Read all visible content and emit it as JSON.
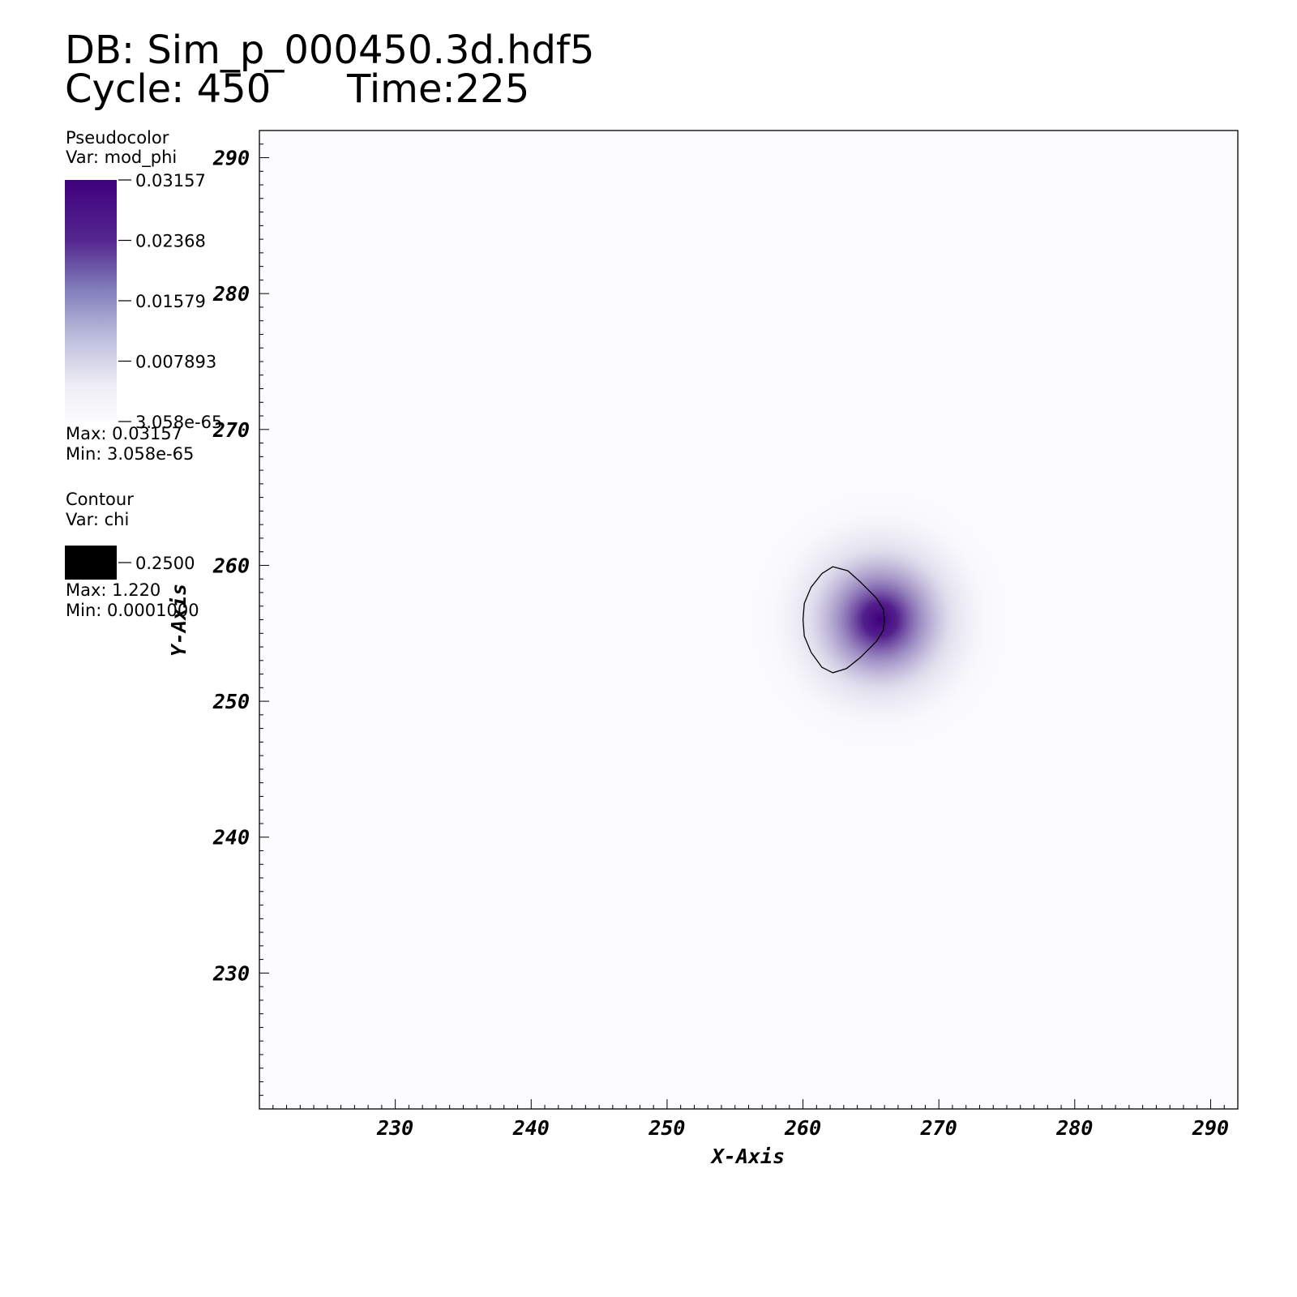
{
  "header": {
    "db": "DB: Sim_p_000450.3d.hdf5",
    "cycle": "Cycle: 450",
    "time": "Time:225"
  },
  "pseudocolor_legend": {
    "title": "Pseudocolor",
    "var": "Var: mod_phi",
    "ticks": [
      "0.03157",
      "0.02368",
      "0.01579",
      "0.007893",
      "3.058e-65"
    ],
    "max_label": "Max:  0.03157",
    "min_label": "Min:  3.058e-65",
    "color_high": "#3f007d",
    "color_low": "#fcfbfd"
  },
  "contour_legend": {
    "title": "Contour",
    "var": "Var: chi",
    "level": "0.2500",
    "max_label": "Max:  1.220",
    "min_label": "Min:  0.0001000",
    "color": "#000000"
  },
  "chart_data": {
    "type": "heatmap",
    "xlabel": "X-Axis",
    "ylabel": "Y-Axis",
    "xlim": [
      220,
      292
    ],
    "ylim": [
      220,
      292
    ],
    "xticks": [
      230,
      240,
      250,
      260,
      270,
      280,
      290
    ],
    "yticks": [
      230,
      240,
      250,
      260,
      270,
      280,
      290
    ],
    "field": {
      "var": "mod_phi",
      "peak_x": 265.2,
      "peak_y": 256.0,
      "peak_value": 0.03157
    },
    "contour": {
      "var": "chi",
      "level": 0.25,
      "points": [
        [
          262.2,
          259.9
        ],
        [
          263.3,
          259.6
        ],
        [
          264.2,
          258.8
        ],
        [
          265.4,
          257.6
        ],
        [
          265.9,
          256.8
        ],
        [
          266.0,
          256.0
        ],
        [
          265.9,
          255.2
        ],
        [
          265.4,
          254.4
        ],
        [
          264.2,
          253.2
        ],
        [
          263.2,
          252.4
        ],
        [
          262.2,
          252.1
        ],
        [
          261.4,
          252.5
        ],
        [
          260.6,
          253.6
        ],
        [
          260.1,
          254.8
        ],
        [
          260.0,
          256.0
        ],
        [
          260.1,
          257.2
        ],
        [
          260.6,
          258.4
        ],
        [
          261.4,
          259.4
        ],
        [
          262.2,
          259.9
        ]
      ]
    }
  }
}
